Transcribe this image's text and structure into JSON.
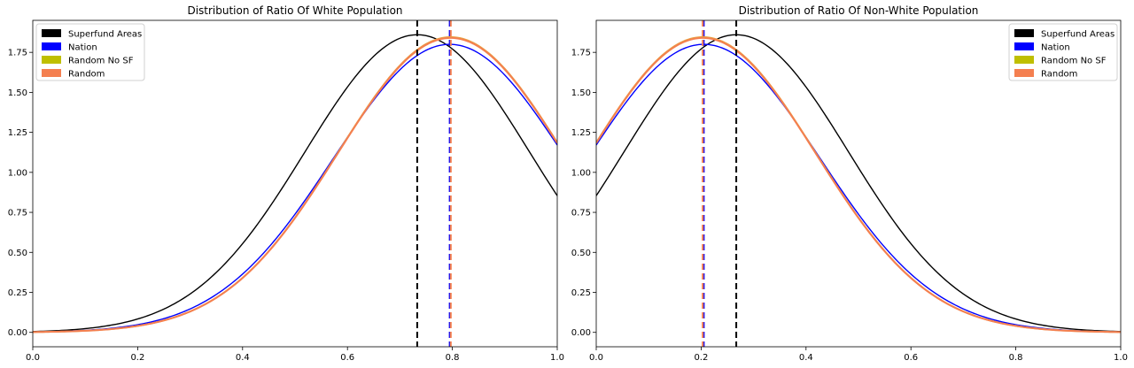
{
  "colors": {
    "superfund": "#000000",
    "nation": "#0000ff",
    "random_no_sf": "#bfbf00",
    "random": "#f47f50",
    "random_no_sf_line": "#e8a040"
  },
  "chart_data": [
    {
      "type": "line",
      "title": "Distribution of Ratio Of White Population",
      "xlabel": "",
      "ylabel": "",
      "xlim": [
        0,
        1
      ],
      "ylim": [
        -0.09,
        1.95
      ],
      "xticks": [
        "0.0",
        "0.2",
        "0.4",
        "0.6",
        "0.8",
        "1.0"
      ],
      "yticks": [
        "0.00",
        "0.25",
        "0.50",
        "0.75",
        "1.00",
        "1.25",
        "1.50",
        "1.75"
      ],
      "legend_position": "top-left",
      "series": [
        {
          "name": "Superfund Areas",
          "kind": "normal",
          "mean": 0.733,
          "sd": 0.214,
          "peak": 1.86,
          "color_key": "superfund"
        },
        {
          "name": "Nation",
          "kind": "normal",
          "mean": 0.795,
          "sd": 0.221,
          "peak": 1.8,
          "color_key": "nation"
        },
        {
          "name": "Random No SF",
          "kind": "normal",
          "mean": 0.797,
          "sd": 0.216,
          "peak": 1.845,
          "color_key": "random_no_sf_line"
        },
        {
          "name": "Random",
          "kind": "normal",
          "mean": 0.797,
          "sd": 0.216,
          "peak": 1.84,
          "color_key": "random"
        }
      ],
      "vlines": [
        {
          "x": 0.733,
          "color_key": "superfund"
        },
        {
          "x": 0.795,
          "color_key": "nation"
        },
        {
          "x": 0.797,
          "color_key": "random"
        }
      ],
      "legend": [
        {
          "label": "Superfund Areas",
          "color_key": "superfund"
        },
        {
          "label": "Nation",
          "color_key": "nation"
        },
        {
          "label": "Random No SF",
          "color_key": "random_no_sf"
        },
        {
          "label": "Random",
          "color_key": "random"
        }
      ]
    },
    {
      "type": "line",
      "title": "Distribution of Ratio Of Non-White Population",
      "xlabel": "",
      "ylabel": "",
      "xlim": [
        0,
        1
      ],
      "ylim": [
        -0.09,
        1.95
      ],
      "xticks": [
        "0.0",
        "0.2",
        "0.4",
        "0.6",
        "0.8",
        "1.0"
      ],
      "yticks": [
        "0.00",
        "0.25",
        "0.50",
        "0.75",
        "1.00",
        "1.25",
        "1.50",
        "1.75"
      ],
      "legend_position": "top-right",
      "series": [
        {
          "name": "Superfund Areas",
          "kind": "normal",
          "mean": 0.267,
          "sd": 0.214,
          "peak": 1.86,
          "color_key": "superfund"
        },
        {
          "name": "Nation",
          "kind": "normal",
          "mean": 0.205,
          "sd": 0.221,
          "peak": 1.8,
          "color_key": "nation"
        },
        {
          "name": "Random No SF",
          "kind": "normal",
          "mean": 0.203,
          "sd": 0.216,
          "peak": 1.845,
          "color_key": "random_no_sf_line"
        },
        {
          "name": "Random",
          "kind": "normal",
          "mean": 0.203,
          "sd": 0.216,
          "peak": 1.84,
          "color_key": "random"
        }
      ],
      "vlines": [
        {
          "x": 0.267,
          "color_key": "superfund"
        },
        {
          "x": 0.205,
          "color_key": "nation"
        },
        {
          "x": 0.203,
          "color_key": "random"
        }
      ],
      "legend": [
        {
          "label": "Superfund Areas",
          "color_key": "superfund"
        },
        {
          "label": "Nation",
          "color_key": "nation"
        },
        {
          "label": "Random No SF",
          "color_key": "random_no_sf"
        },
        {
          "label": "Random",
          "color_key": "random"
        }
      ]
    }
  ]
}
